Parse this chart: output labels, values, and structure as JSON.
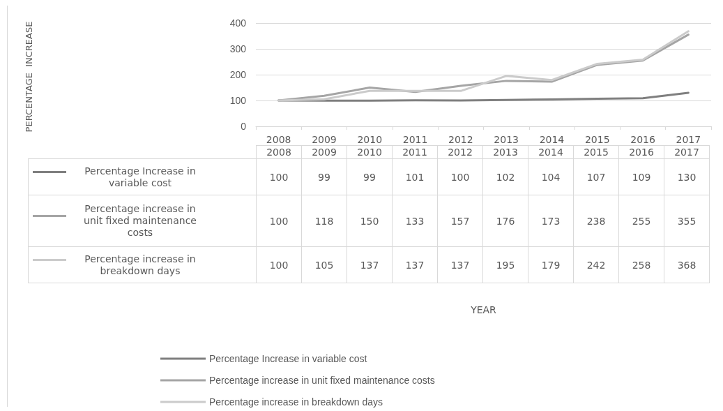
{
  "chart_data": {
    "type": "line",
    "annotations": [
      "PERCENTAGE  INCREASE",
      "YEAR"
    ],
    "categories": [
      "2008",
      "2009",
      "2010",
      "2011",
      "2012",
      "2013",
      "2014",
      "2015",
      "2016",
      "2017"
    ],
    "series": [
      {
        "name": "Percentage Increase in variable cost",
        "color": "#7f7f7f",
        "values": [
          100,
          99,
          99,
          101,
          100,
          102,
          104,
          107,
          109,
          130
        ]
      },
      {
        "name": "Percentage increase in unit fixed maintenance costs",
        "color": "#a5a5a5",
        "values": [
          100,
          118,
          150,
          133,
          157,
          176,
          173,
          238,
          255,
          355
        ]
      },
      {
        "name": "Percentage increase in breakdown days",
        "color": "#cbcbcb",
        "values": [
          100,
          105,
          137,
          137,
          137,
          195,
          179,
          242,
          258,
          368
        ]
      }
    ],
    "ylim": [
      0,
      400
    ],
    "yticks": [
      0,
      100,
      200,
      300,
      400
    ],
    "grid": "y",
    "legend": "bottom",
    "marker": "none",
    "line_style": "solid",
    "data_labels": true
  }
}
